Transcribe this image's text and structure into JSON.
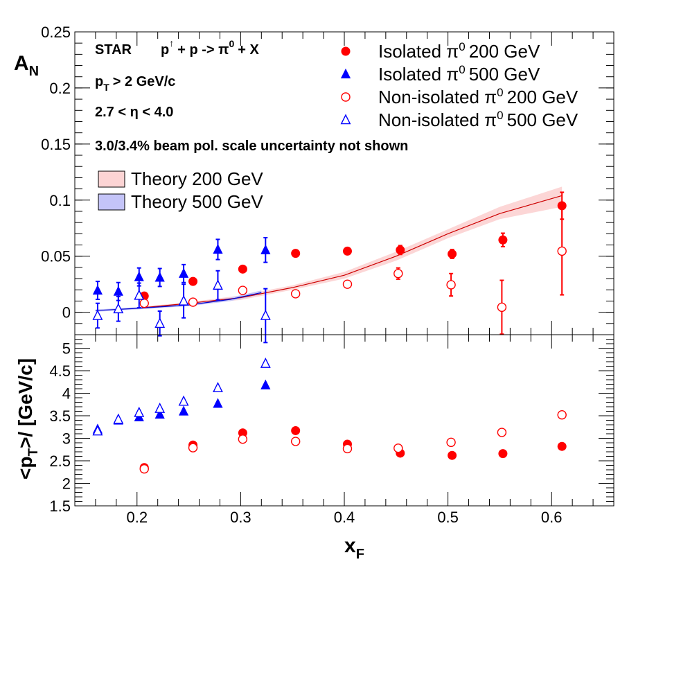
{
  "chart_data": {
    "type": "scatter",
    "xlabel_main": "x",
    "xlabel_sub": "F",
    "x_range": [
      0.14,
      0.66
    ],
    "x_ticks": [
      {
        "v": 0.2,
        "label": "0.2"
      },
      {
        "v": 0.3,
        "label": "0.3"
      },
      {
        "v": 0.4,
        "label": "0.4"
      },
      {
        "v": 0.5,
        "label": "0.5"
      },
      {
        "v": 0.6,
        "label": "0.6"
      }
    ],
    "top_panel": {
      "ylabel_main": "A",
      "ylabel_sub": "N",
      "y_range": [
        -0.02,
        0.25
      ],
      "y_ticks": [
        {
          "v": 0.0,
          "label": "0"
        },
        {
          "v": 0.05,
          "label": "0.05"
        },
        {
          "v": 0.1,
          "label": "0.1"
        },
        {
          "v": 0.15,
          "label": "0.15"
        },
        {
          "v": 0.2,
          "label": "0.2"
        },
        {
          "v": 0.25,
          "label": "0.25"
        }
      ],
      "annotations": {
        "star": "STAR",
        "reaction_p": "p",
        "reaction_arrow": "↑",
        "reaction_rest": "+ p -> π",
        "reaction_sup": "0",
        "reaction_end": "+ X",
        "pt_cut_main": "p",
        "pt_cut_sub": "T",
        "pt_cut_rest": "> 2 GeV/c",
        "eta_cut": "2.7 < η < 4.0",
        "pol_note": "3.0/3.4% beam pol. scale uncertainty not shown"
      },
      "legend": [
        {
          "pre": "Isolated π",
          "sup": "0",
          "post": "200 GeV",
          "marker": "filled-circle",
          "color": "#ff0000"
        },
        {
          "pre": "Isolated π",
          "sup": "0",
          "post": "500 GeV",
          "marker": "filled-triangle",
          "color": "#0000ff"
        },
        {
          "pre": "Non-isolated π",
          "sup": "0",
          "post": "200 GeV",
          "marker": "open-circle",
          "color": "#ff0000"
        },
        {
          "pre": "Non-isolated π",
          "sup": "0",
          "post": "500 GeV",
          "marker": "open-triangle",
          "color": "#0000ff"
        }
      ],
      "theory_legend": [
        {
          "label": "Theory 200 GeV",
          "fill": "#fcd4d4",
          "stroke": "#cc0000"
        },
        {
          "label": "Theory 500 GeV",
          "fill": "#c4c4f8",
          "stroke": "#0000cc"
        }
      ],
      "series": [
        {
          "name": "Isolated π0 200 GeV",
          "marker": "filled-circle",
          "color": "#ff0000",
          "points": [
            {
              "x": 0.207,
              "y": 0.0145,
              "err": 0.003
            },
            {
              "x": 0.254,
              "y": 0.0275,
              "err": 0.003
            },
            {
              "x": 0.302,
              "y": 0.0385,
              "err": 0.003
            },
            {
              "x": 0.353,
              "y": 0.0525,
              "err": 0.003
            },
            {
              "x": 0.403,
              "y": 0.0545,
              "err": 0.003
            },
            {
              "x": 0.454,
              "y": 0.0555,
              "err": 0.004
            },
            {
              "x": 0.504,
              "y": 0.052,
              "err": 0.004
            },
            {
              "x": 0.553,
              "y": 0.0645,
              "err": 0.006
            },
            {
              "x": 0.61,
              "y": 0.095,
              "err": 0.012
            }
          ]
        },
        {
          "name": "Isolated π0 500 GeV",
          "marker": "filled-triangle",
          "color": "#0000ff",
          "points": [
            {
              "x": 0.162,
              "y": 0.0195,
              "err": 0.008
            },
            {
              "x": 0.182,
              "y": 0.0185,
              "err": 0.008
            },
            {
              "x": 0.202,
              "y": 0.0315,
              "err": 0.008
            },
            {
              "x": 0.222,
              "y": 0.031,
              "err": 0.008
            },
            {
              "x": 0.245,
              "y": 0.0345,
              "err": 0.008
            },
            {
              "x": 0.278,
              "y": 0.056,
              "err": 0.009
            },
            {
              "x": 0.324,
              "y": 0.0555,
              "err": 0.011
            }
          ]
        },
        {
          "name": "Non-isolated π0 200 GeV",
          "marker": "open-circle",
          "color": "#ff0000",
          "points": [
            {
              "x": 0.207,
              "y": 0.008,
              "err": 0.0
            },
            {
              "x": 0.254,
              "y": 0.009,
              "err": 0.0
            },
            {
              "x": 0.302,
              "y": 0.0195,
              "err": 0.0
            },
            {
              "x": 0.353,
              "y": 0.0165,
              "err": 0.0
            },
            {
              "x": 0.403,
              "y": 0.025,
              "err": 0.0
            },
            {
              "x": 0.452,
              "y": 0.0345,
              "err": 0.005
            },
            {
              "x": 0.503,
              "y": 0.0245,
              "err": 0.01
            },
            {
              "x": 0.552,
              "y": 0.0045,
              "err": 0.024
            },
            {
              "x": 0.61,
              "y": 0.0545,
              "err": 0.039
            }
          ]
        },
        {
          "name": "Non-isolated π0 500 GeV",
          "marker": "open-triangle",
          "color": "#0000ff",
          "points": [
            {
              "x": 0.162,
              "y": -0.003,
              "err": 0.011
            },
            {
              "x": 0.182,
              "y": 0.003,
              "err": 0.011
            },
            {
              "x": 0.202,
              "y": 0.015,
              "err": 0.011
            },
            {
              "x": 0.222,
              "y": -0.01,
              "err": 0.011
            },
            {
              "x": 0.245,
              "y": 0.01,
              "err": 0.015
            },
            {
              "x": 0.278,
              "y": 0.024,
              "err": 0.013
            },
            {
              "x": 0.324,
              "y": -0.003,
              "err": 0.024
            }
          ]
        }
      ],
      "theory": [
        {
          "name": "Theory 200 GeV",
          "line": "#cc0000",
          "band": "#fcd4d4",
          "points": [
            {
              "x": 0.205,
              "y": 0.004,
              "lo": 0.003,
              "hi": 0.005
            },
            {
              "x": 0.25,
              "y": 0.008,
              "lo": 0.007,
              "hi": 0.009
            },
            {
              "x": 0.3,
              "y": 0.013,
              "lo": 0.011,
              "hi": 0.015
            },
            {
              "x": 0.35,
              "y": 0.022,
              "lo": 0.02,
              "hi": 0.024
            },
            {
              "x": 0.4,
              "y": 0.033,
              "lo": 0.03,
              "hi": 0.036
            },
            {
              "x": 0.45,
              "y": 0.05,
              "lo": 0.046,
              "hi": 0.054
            },
            {
              "x": 0.5,
              "y": 0.07,
              "lo": 0.066,
              "hi": 0.074
            },
            {
              "x": 0.55,
              "y": 0.088,
              "lo": 0.083,
              "hi": 0.094
            },
            {
              "x": 0.61,
              "y": 0.104,
              "lo": 0.094,
              "hi": 0.112
            }
          ]
        },
        {
          "name": "Theory 500 GeV",
          "line": "#0000cc",
          "band": "#c4c4f8",
          "points": [
            {
              "x": 0.16,
              "y": 0.0015,
              "lo": 0.0005,
              "hi": 0.0025
            },
            {
              "x": 0.2,
              "y": 0.0035,
              "lo": 0.0025,
              "hi": 0.0045
            },
            {
              "x": 0.25,
              "y": 0.0065,
              "lo": 0.0055,
              "hi": 0.0075
            },
            {
              "x": 0.29,
              "y": 0.0115,
              "lo": 0.01,
              "hi": 0.013
            },
            {
              "x": 0.32,
              "y": 0.0175,
              "lo": 0.016,
              "hi": 0.0195
            }
          ]
        }
      ]
    },
    "bottom_panel": {
      "ylabel": "<p",
      "ylabel_sub": "T",
      "ylabel_rest": ">/ [GeV/c]",
      "y_range": [
        1.5,
        5.3
      ],
      "y_ticks": [
        {
          "v": 1.5,
          "label": "1.5"
        },
        {
          "v": 2.0,
          "label": "2"
        },
        {
          "v": 2.5,
          "label": "2.5"
        },
        {
          "v": 3.0,
          "label": "3"
        },
        {
          "v": 3.5,
          "label": "3.5"
        },
        {
          "v": 4.0,
          "label": "4"
        },
        {
          "v": 4.5,
          "label": "4.5"
        },
        {
          "v": 5.0,
          "label": "5"
        }
      ],
      "series": [
        {
          "name": "Isolated π0 200 GeV",
          "marker": "filled-circle",
          "color": "#ff0000",
          "points": [
            [
              0.207,
              2.35
            ],
            [
              0.254,
              2.85
            ],
            [
              0.302,
              3.12
            ],
            [
              0.353,
              3.17
            ],
            [
              0.403,
              2.87
            ],
            [
              0.454,
              2.67
            ],
            [
              0.504,
              2.62
            ],
            [
              0.553,
              2.66
            ],
            [
              0.61,
              2.82
            ]
          ]
        },
        {
          "name": "Isolated π0 500 GeV",
          "marker": "filled-triangle",
          "color": "#0000ff",
          "points": [
            [
              0.162,
              3.2
            ],
            [
              0.182,
              3.4
            ],
            [
              0.202,
              3.47
            ],
            [
              0.222,
              3.53
            ],
            [
              0.245,
              3.6
            ],
            [
              0.278,
              3.77
            ],
            [
              0.324,
              4.18
            ]
          ]
        },
        {
          "name": "Non-isolated π0 200 GeV",
          "marker": "open-circle",
          "color": "#ff0000",
          "points": [
            [
              0.207,
              2.32
            ],
            [
              0.254,
              2.79
            ],
            [
              0.302,
              2.98
            ],
            [
              0.353,
              2.93
            ],
            [
              0.403,
              2.77
            ],
            [
              0.452,
              2.78
            ],
            [
              0.503,
              2.91
            ],
            [
              0.552,
              3.13
            ],
            [
              0.61,
              3.52
            ]
          ]
        },
        {
          "name": "Non-isolated π0 500 GeV",
          "marker": "open-triangle",
          "color": "#0000ff",
          "points": [
            [
              0.162,
              3.16
            ],
            [
              0.182,
              3.42
            ],
            [
              0.202,
              3.57
            ],
            [
              0.222,
              3.66
            ],
            [
              0.245,
              3.82
            ],
            [
              0.278,
              4.12
            ],
            [
              0.324,
              4.66
            ]
          ]
        }
      ]
    }
  }
}
